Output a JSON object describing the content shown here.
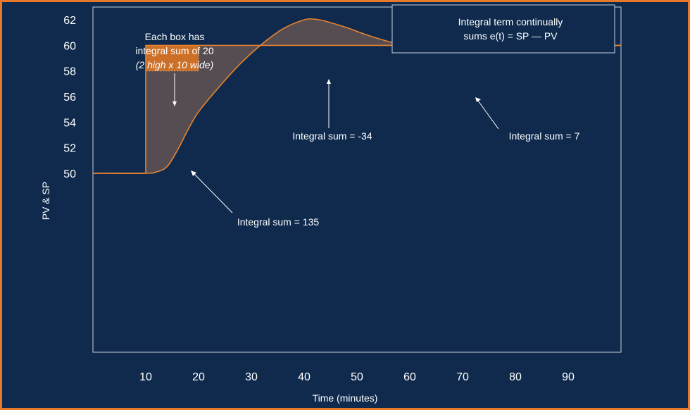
{
  "chart_data": {
    "type": "line",
    "xlabel": "Time (minutes)",
    "ylabel": "PV & SP",
    "xlim": [
      0,
      100
    ],
    "ylim": [
      36,
      63
    ],
    "x_ticks": [
      10,
      20,
      30,
      40,
      50,
      60,
      70,
      80,
      90
    ],
    "y_ticks": [
      50,
      52,
      54,
      56,
      58,
      60,
      62
    ],
    "series": [
      {
        "role": "setpoint",
        "x": [
          0,
          10,
          10,
          100
        ],
        "y": [
          50,
          50,
          60,
          60
        ]
      },
      {
        "role": "process-variable",
        "x": [
          0,
          10,
          12,
          14,
          16,
          18,
          20,
          24,
          28,
          32,
          36,
          40,
          42,
          44,
          48,
          52,
          56,
          60,
          64,
          68,
          72,
          76,
          80,
          84,
          88,
          92,
          96,
          100
        ],
        "y": [
          50,
          50,
          50.1,
          50.5,
          51.8,
          53.4,
          54.8,
          56.8,
          58.6,
          60.1,
          61.3,
          62.0,
          62.05,
          61.9,
          61.4,
          60.8,
          60.3,
          59.95,
          59.7,
          59.6,
          59.6,
          59.65,
          59.75,
          59.85,
          59.95,
          60.0,
          60.0,
          60.0
        ]
      }
    ],
    "shaded_regions": true,
    "example_box": {
      "x": [
        10,
        20
      ],
      "y": [
        58,
        60
      ]
    },
    "grid": false,
    "colors": {
      "background": "#0f2a4d",
      "border": "#e8792a",
      "curve": "#e8832e",
      "fill": "#5a4f52",
      "box": "#cc7028",
      "text": "#ffffff"
    }
  },
  "annotations": {
    "box_note_line1": "Each box has",
    "box_note_line2": "integral sum of 20",
    "box_note_line3": "(2 high x 10 wide)",
    "sum_135": "Integral sum = 135",
    "sum_neg34": "Integral sum = -34",
    "sum_7": "Integral sum = 7",
    "info_line1": "Integral term continually",
    "info_line2": "sums e(t) = SP — PV"
  }
}
